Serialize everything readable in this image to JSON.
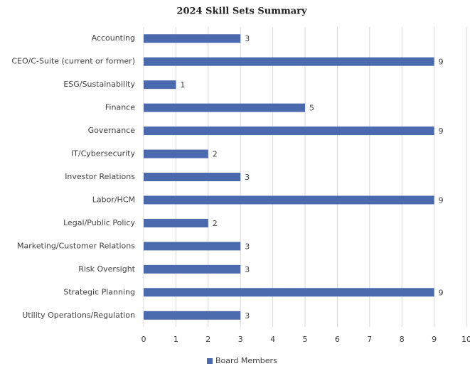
{
  "chart_data": {
    "type": "bar",
    "orientation": "horizontal",
    "title": "2024 Skill Sets Summary",
    "categories": [
      "Accounting",
      "CEO/C-Suite (current or former)",
      "ESG/Sustainability",
      "Finance",
      "Governance",
      "IT/Cybersecurity",
      "Investor Relations",
      "Labor/HCM",
      "Legal/Public Policy",
      "Marketing/Customer Relations",
      "Risk Oversight",
      "Strategic Planning",
      "Utility Operations/Regulation"
    ],
    "series": [
      {
        "name": "Board Members",
        "color": "#4a6aad",
        "values": [
          3,
          9,
          1,
          5,
          9,
          2,
          3,
          9,
          2,
          3,
          3,
          9,
          3
        ]
      }
    ],
    "xlim": [
      0,
      10
    ],
    "xticks": [
      0,
      1,
      2,
      3,
      4,
      5,
      6,
      7,
      8,
      9,
      10
    ],
    "grid": true,
    "legend": "bottom"
  }
}
